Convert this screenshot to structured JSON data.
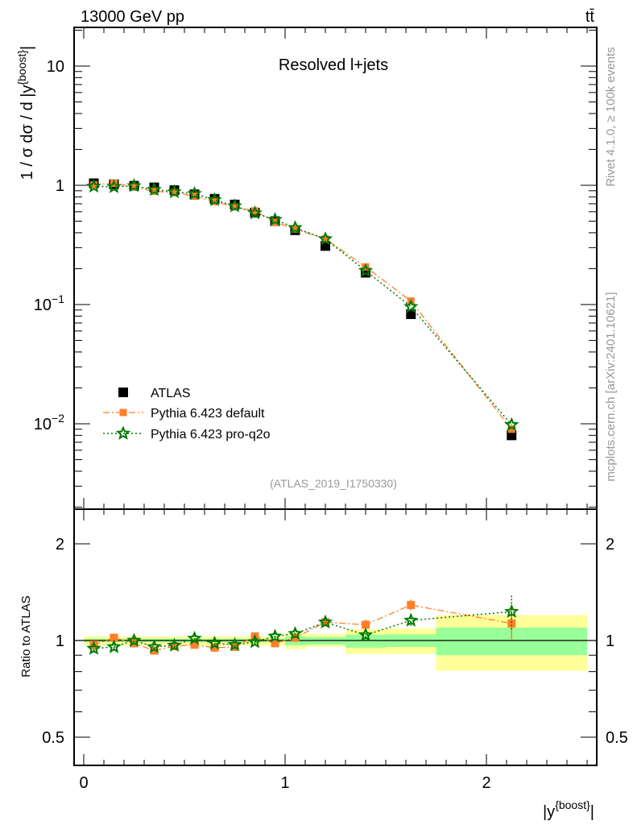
{
  "header": {
    "left": "13000 GeV pp",
    "right": "tt̄"
  },
  "side_labels": {
    "rivet": "Rivet 4.1.0, ≥ 100k events",
    "mcplots": "mcplots.cern.ch [arXiv:2401.10621]"
  },
  "colors": {
    "atlas": "#000000",
    "default": "#ff7f2a",
    "proq2o": "#007a00",
    "band_outer": "#ffff99",
    "band_inner": "#99ff99"
  },
  "chart_data": [
    {
      "type": "scatter",
      "title": "Resolved l+jets",
      "watermark": "(ATLAS_2019_I1750330)",
      "ylabel": "1 / σ dσ / d |y^{boost}|",
      "ylabel_parts": [
        "1 / σ dσ / d |y",
        "{boost}",
        "|"
      ],
      "yscale": "log",
      "xlim": [
        -0.05,
        2.55
      ],
      "ylim": [
        0.002,
        20
      ],
      "x_ticks": [
        "0",
        "1",
        "2"
      ],
      "y_ticks": [
        {
          "value": 10,
          "base": "10",
          "exp": ""
        },
        {
          "value": 1,
          "base": "1",
          "exp": ""
        },
        {
          "value": 0.1,
          "base": "10",
          "exp": "−1"
        },
        {
          "value": 0.01,
          "base": "10",
          "exp": "−2"
        }
      ],
      "legend_position": "bottom-left",
      "x": [
        0.05,
        0.15,
        0.25,
        0.35,
        0.45,
        0.55,
        0.65,
        0.75,
        0.85,
        0.95,
        1.05,
        1.2,
        1.4,
        1.625,
        2.125
      ],
      "series": [
        {
          "name": "ATLAS",
          "values": [
            1.04,
            1.02,
            0.99,
            0.96,
            0.91,
            0.84,
            0.77,
            0.69,
            0.59,
            0.5,
            0.42,
            0.31,
            0.185,
            0.083,
            0.008
          ]
        },
        {
          "name": "Pythia 6.423 default",
          "values": [
            1.01,
            1.04,
            0.97,
            0.89,
            0.87,
            0.81,
            0.73,
            0.66,
            0.61,
            0.49,
            0.43,
            0.355,
            0.207,
            0.107,
            0.009
          ]
        },
        {
          "name": "Pythia 6.423 pro-q2o",
          "values": [
            0.98,
            0.97,
            0.99,
            0.92,
            0.88,
            0.85,
            0.755,
            0.67,
            0.585,
            0.515,
            0.44,
            0.355,
            0.192,
            0.096,
            0.0098
          ]
        }
      ]
    },
    {
      "type": "scatter",
      "ylabel": "Ratio to ATLAS",
      "xlabel_parts": [
        "|y",
        "{boost}",
        "|"
      ],
      "yscale": "log",
      "ylim": [
        0.41,
        2.56
      ],
      "y_ticks": [
        "2",
        "1",
        "0.5"
      ],
      "bin_edges": [
        0,
        0.1,
        0.2,
        0.3,
        0.4,
        0.5,
        0.6,
        0.7,
        0.8,
        0.9,
        1.0,
        1.1,
        1.3,
        1.5,
        1.75,
        2.5
      ],
      "band_outer_up": [
        1.03,
        1.03,
        1.03,
        1.03,
        1.03,
        1.03,
        1.03,
        1.03,
        1.03,
        1.03,
        1.057,
        1.047,
        1.084,
        1.09,
        1.2
      ],
      "band_outer_down": [
        0.965,
        0.965,
        0.965,
        0.965,
        0.965,
        0.965,
        0.965,
        0.965,
        0.965,
        0.965,
        0.94,
        0.955,
        0.908,
        0.908,
        0.805
      ],
      "band_inner_up": [
        1.012,
        1.012,
        1.012,
        1.012,
        1.012,
        1.012,
        1.012,
        1.012,
        1.012,
        1.012,
        1.03,
        1.025,
        1.043,
        1.045,
        1.097
      ],
      "band_inner_down": [
        0.988,
        0.988,
        0.988,
        0.988,
        0.988,
        0.988,
        0.988,
        0.988,
        0.988,
        0.988,
        0.965,
        0.97,
        0.95,
        0.955,
        0.9
      ],
      "x": [
        0.05,
        0.15,
        0.25,
        0.35,
        0.45,
        0.55,
        0.65,
        0.75,
        0.85,
        0.95,
        1.05,
        1.2,
        1.4,
        1.625,
        2.125
      ],
      "series": [
        {
          "name": "Pythia 6.423 default",
          "values": [
            0.97,
            1.02,
            0.98,
            0.93,
            0.96,
            0.97,
            0.95,
            0.955,
            1.03,
            0.98,
            1.02,
            1.14,
            1.12,
            1.29,
            1.13
          ],
          "errors": [
            0.02,
            0.02,
            0.02,
            0.02,
            0.02,
            0.02,
            0.02,
            0.02,
            0.025,
            0.025,
            0.03,
            0.03,
            0.04,
            0.05,
            0.12
          ]
        },
        {
          "name": "Pythia 6.423 pro-q2o",
          "values": [
            0.944,
            0.955,
            1.0,
            0.955,
            0.965,
            1.015,
            0.98,
            0.97,
            0.99,
            1.03,
            1.05,
            1.14,
            1.04,
            1.155,
            1.23
          ],
          "errors": [
            0.02,
            0.02,
            0.02,
            0.02,
            0.02,
            0.025,
            0.02,
            0.02,
            0.02,
            0.025,
            0.03,
            0.03,
            0.04,
            0.05,
            0.15
          ]
        }
      ]
    }
  ]
}
